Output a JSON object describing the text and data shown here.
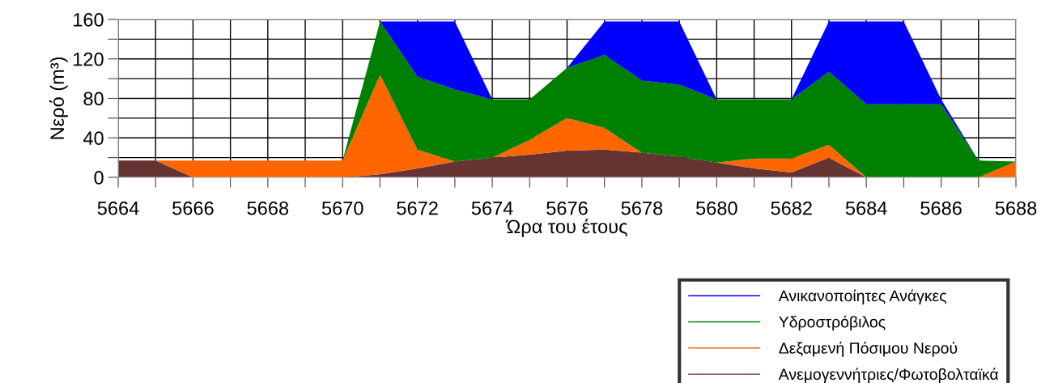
{
  "chart_data": {
    "type": "area",
    "stacked": true,
    "xlabel": "Ώρα του έτους",
    "ylabel": "Νερό (m³)",
    "x": [
      5664,
      5665,
      5666,
      5667,
      5668,
      5669,
      5670,
      5671,
      5672,
      5673,
      5674,
      5675,
      5676,
      5677,
      5678,
      5679,
      5680,
      5681,
      5682,
      5683,
      5684,
      5685,
      5686,
      5687,
      5688
    ],
    "series": [
      {
        "name": "Ανεμογεννήτριες/Φωτοβολταϊκά",
        "color": "#663333",
        "values": [
          17,
          17,
          0,
          0,
          0,
          0,
          0,
          3,
          9,
          16,
          20,
          23,
          27,
          28,
          25,
          21,
          15,
          9,
          5,
          20,
          0,
          0,
          0,
          0,
          0
        ]
      },
      {
        "name": "Δεξαμενή Πόσιμου Νερού",
        "color": "#ff6600",
        "values": [
          0,
          0,
          17,
          17,
          17,
          17,
          17,
          101,
          19,
          0,
          0,
          15,
          33,
          22,
          0,
          0,
          0,
          10,
          14,
          13,
          0,
          0,
          0,
          0,
          16
        ]
      },
      {
        "name": "Υδροστρόβιλος",
        "color": "#008000",
        "values": [
          0,
          0,
          0,
          0,
          0,
          0,
          0,
          54,
          74,
          73,
          59,
          41,
          51,
          74,
          73,
          73,
          64,
          60,
          60,
          74,
          74,
          74,
          74,
          17,
          0
        ]
      },
      {
        "name": "Ανικανοποίητες Ανάγκες",
        "color": "#0000ff",
        "values": [
          0,
          0,
          0,
          0,
          0,
          0,
          0,
          0,
          56,
          69,
          0,
          0,
          0,
          34,
          60,
          64,
          0,
          0,
          0,
          51,
          84,
          84,
          5,
          0,
          0
        ]
      }
    ],
    "xlim": [
      5664,
      5688
    ],
    "xticks": [
      5664,
      {
        "value": 5665,
        "label": null
      },
      5666,
      {
        "value": 5667,
        "label": null
      },
      5668,
      {
        "value": 5669,
        "label": null
      },
      5670,
      {
        "value": 5671,
        "label": null
      },
      5672,
      {
        "value": 5673,
        "label": null
      },
      5674,
      {
        "value": 5675,
        "label": null
      },
      5676,
      {
        "value": 5677,
        "label": null
      },
      5678,
      {
        "value": 5679,
        "label": null
      },
      5680,
      {
        "value": 5681,
        "label": null
      },
      5682,
      {
        "value": 5683,
        "label": null
      },
      5684,
      {
        "value": 5685,
        "label": null
      },
      5686,
      {
        "value": 5687,
        "label": null
      },
      5688
    ],
    "ylim": [
      0,
      160
    ],
    "yticks": [
      0,
      {
        "value": 20,
        "label": null
      },
      40,
      {
        "value": 60,
        "label": null
      },
      80,
      {
        "value": 100,
        "label": null
      },
      120,
      {
        "value": 140,
        "label": null
      },
      160
    ],
    "grid": true,
    "legend": "bottom right"
  }
}
